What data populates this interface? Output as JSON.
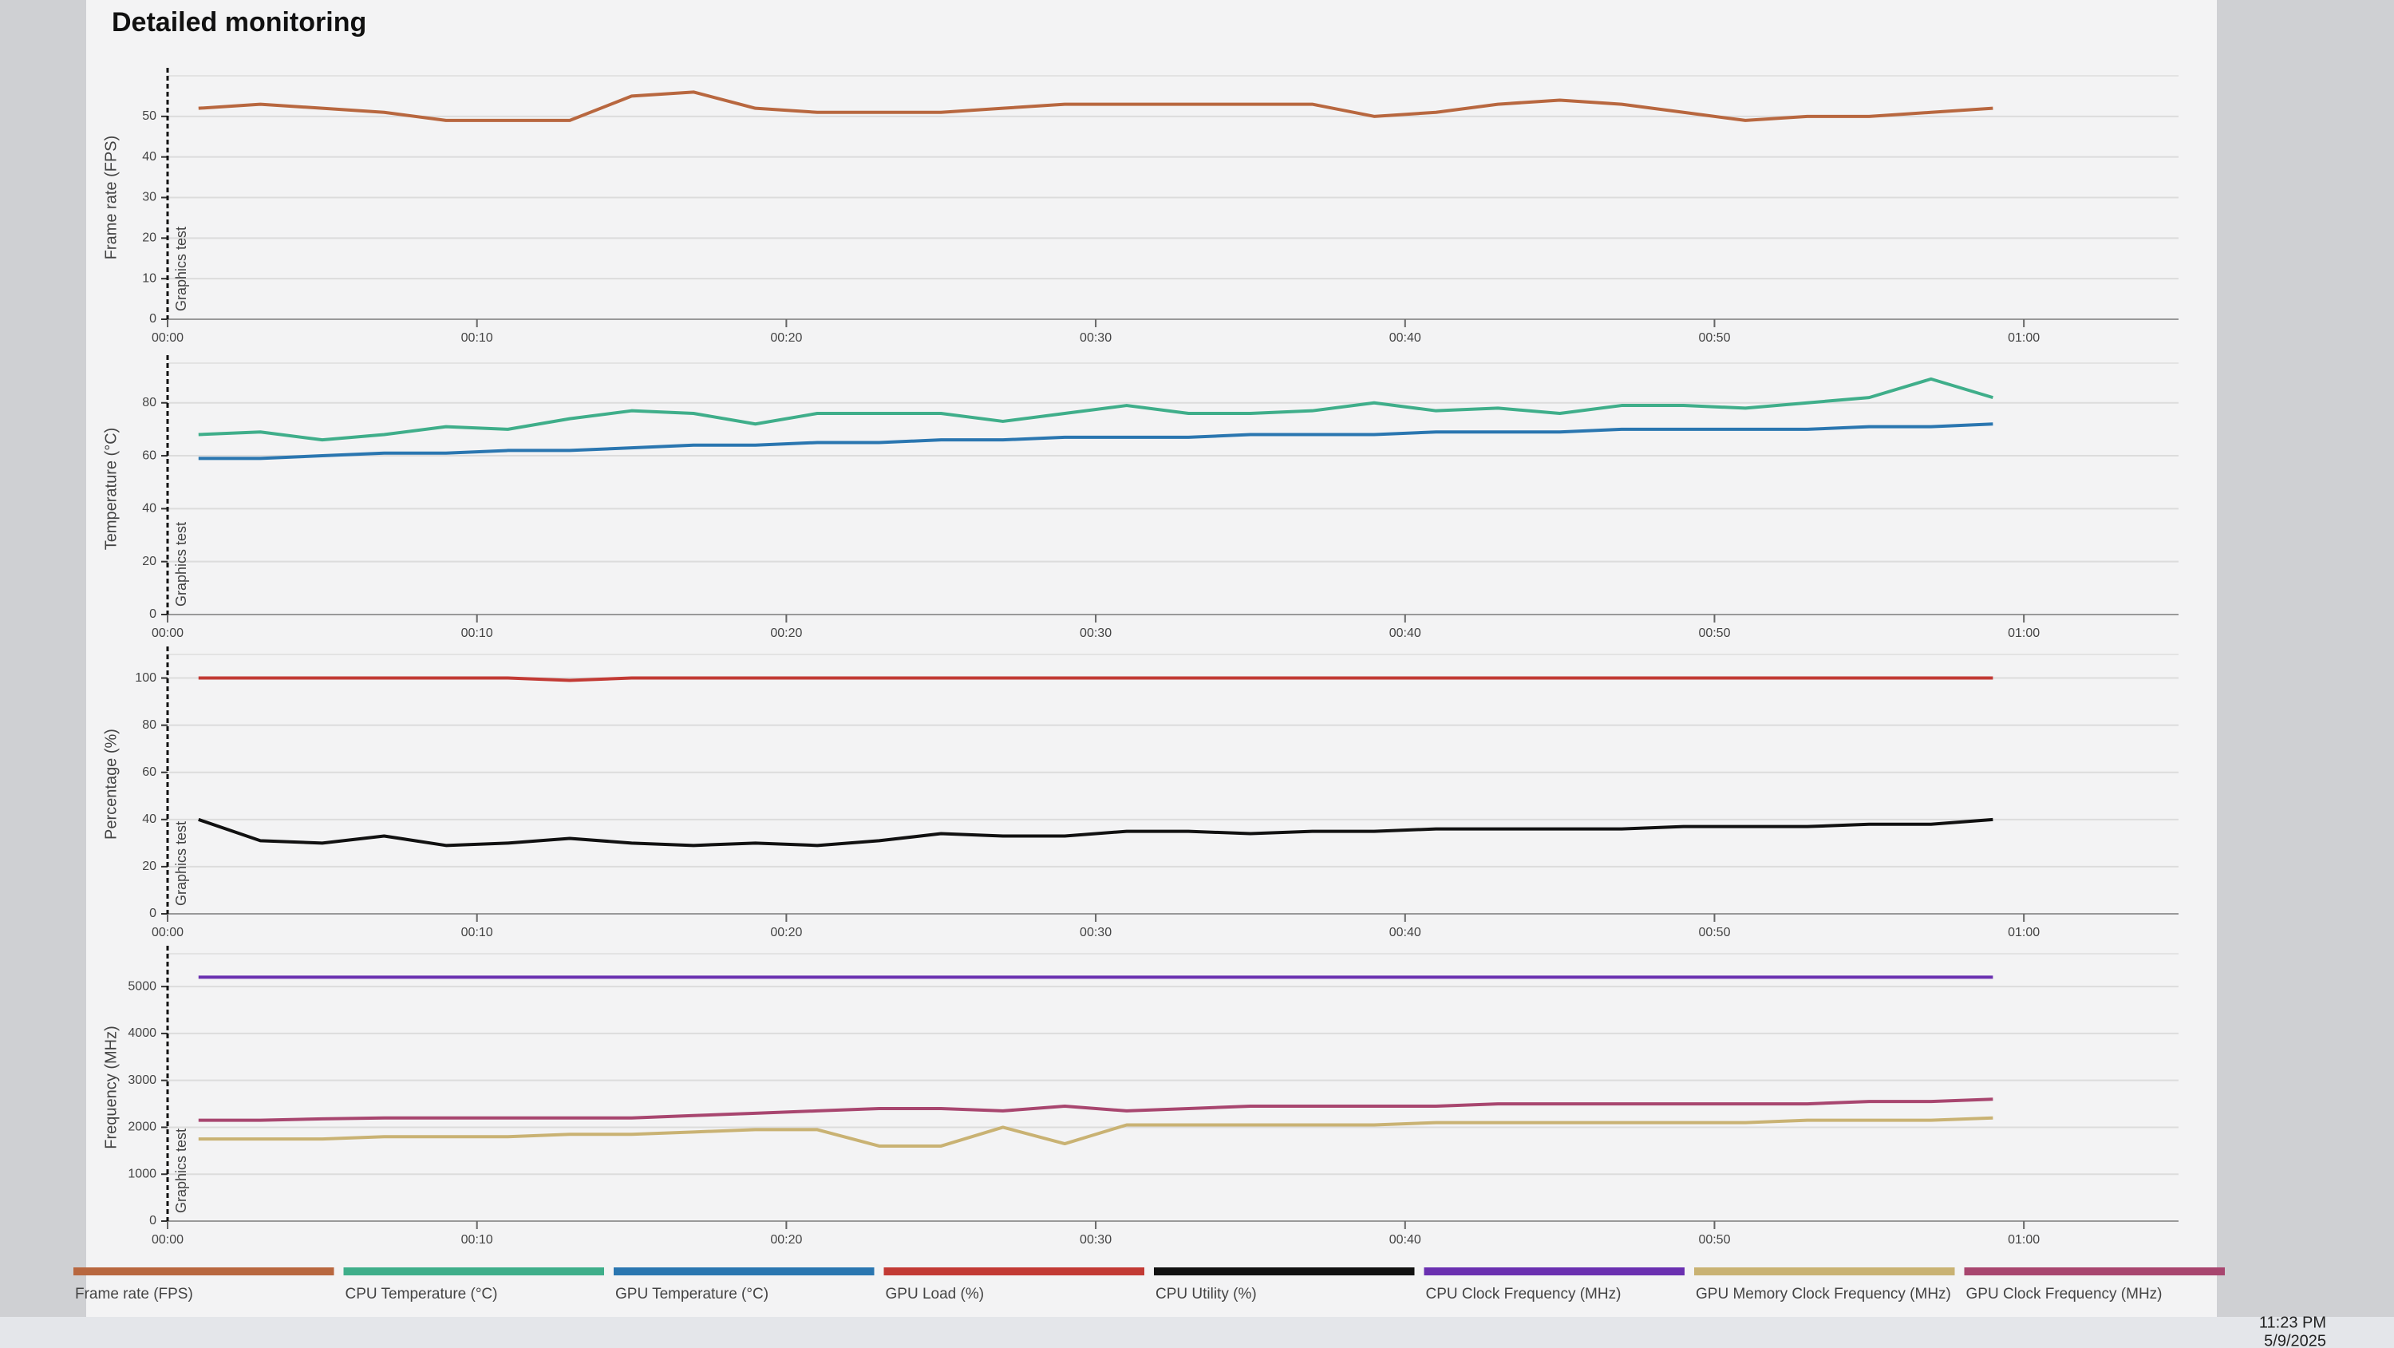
{
  "title": "Detailed monitoring",
  "chart_data": [
    {
      "type": "line",
      "ylabel": "Frame rate (FPS)",
      "annotation": "Graphics test",
      "x": [
        1,
        3,
        5,
        7,
        9,
        11,
        13,
        15,
        17,
        19,
        21,
        23,
        25,
        27,
        29,
        31,
        33,
        35,
        37,
        39,
        41,
        43,
        45,
        47,
        49,
        51,
        53,
        55,
        57,
        59
      ],
      "xlim": [
        0,
        65
      ],
      "xticks": [
        {
          "value": 0,
          "label": "00:00"
        },
        {
          "value": 10,
          "label": "00:10"
        },
        {
          "value": 20,
          "label": "00:20"
        },
        {
          "value": 30,
          "label": "00:30"
        },
        {
          "value": 40,
          "label": "00:40"
        },
        {
          "value": 50,
          "label": "00:50"
        },
        {
          "value": 60,
          "label": "01:00"
        }
      ],
      "ylim": [
        0,
        60
      ],
      "yticks": [
        0,
        10,
        20,
        30,
        40,
        50
      ],
      "grid": true,
      "series": [
        {
          "name": "Frame rate (FPS)",
          "color": "#b8673f",
          "values": [
            52,
            53,
            52,
            51,
            49,
            49,
            49,
            55,
            56,
            52,
            51,
            51,
            51,
            52,
            53,
            53,
            53,
            53,
            53,
            50,
            51,
            53,
            54,
            53,
            51,
            49,
            50,
            50,
            51,
            52
          ]
        }
      ]
    },
    {
      "type": "line",
      "ylabel": "Temperature (°C)",
      "annotation": "Graphics test",
      "x": [
        1,
        3,
        5,
        7,
        9,
        11,
        13,
        15,
        17,
        19,
        21,
        23,
        25,
        27,
        29,
        31,
        33,
        35,
        37,
        39,
        41,
        43,
        45,
        47,
        49,
        51,
        53,
        55,
        57,
        59
      ],
      "xlim": [
        0,
        65
      ],
      "xticks": [
        {
          "value": 0,
          "label": "00:00"
        },
        {
          "value": 10,
          "label": "00:10"
        },
        {
          "value": 20,
          "label": "00:20"
        },
        {
          "value": 30,
          "label": "00:30"
        },
        {
          "value": 40,
          "label": "00:40"
        },
        {
          "value": 50,
          "label": "00:50"
        },
        {
          "value": 60,
          "label": "01:00"
        }
      ],
      "ylim": [
        0,
        95
      ],
      "yticks": [
        0,
        20,
        40,
        60,
        80
      ],
      "grid": true,
      "series": [
        {
          "name": "CPU Temperature (°C)",
          "color": "#3fae8a",
          "values": [
            68,
            69,
            66,
            68,
            71,
            70,
            74,
            77,
            76,
            72,
            76,
            76,
            76,
            73,
            76,
            79,
            76,
            76,
            77,
            80,
            77,
            78,
            76,
            79,
            79,
            78,
            80,
            82,
            89,
            82
          ]
        },
        {
          "name": "GPU Temperature (°C)",
          "color": "#2a76b0",
          "values": [
            59,
            59,
            60,
            61,
            61,
            62,
            62,
            63,
            64,
            64,
            65,
            65,
            66,
            66,
            67,
            67,
            67,
            68,
            68,
            68,
            69,
            69,
            69,
            70,
            70,
            70,
            70,
            71,
            71,
            72
          ]
        }
      ]
    },
    {
      "type": "line",
      "ylabel": "Percentage (%)",
      "annotation": "Graphics test",
      "x": [
        1,
        3,
        5,
        7,
        9,
        11,
        13,
        15,
        17,
        19,
        21,
        23,
        25,
        27,
        29,
        31,
        33,
        35,
        37,
        39,
        41,
        43,
        45,
        47,
        49,
        51,
        53,
        55,
        57,
        59
      ],
      "xlim": [
        0,
        65
      ],
      "xticks": [
        {
          "value": 0,
          "label": "00:00"
        },
        {
          "value": 10,
          "label": "00:10"
        },
        {
          "value": 20,
          "label": "00:20"
        },
        {
          "value": 30,
          "label": "00:30"
        },
        {
          "value": 40,
          "label": "00:40"
        },
        {
          "value": 50,
          "label": "00:50"
        },
        {
          "value": 60,
          "label": "01:00"
        }
      ],
      "ylim": [
        0,
        110
      ],
      "yticks": [
        0,
        20,
        40,
        60,
        80,
        100
      ],
      "grid": true,
      "series": [
        {
          "name": "GPU Load (%)",
          "color": "#c23a34",
          "values": [
            100,
            100,
            100,
            100,
            100,
            100,
            99,
            100,
            100,
            100,
            100,
            100,
            100,
            100,
            100,
            100,
            100,
            100,
            100,
            100,
            100,
            100,
            100,
            100,
            100,
            100,
            100,
            100,
            100,
            100
          ]
        },
        {
          "name": "CPU Utility (%)",
          "color": "#111111",
          "values": [
            40,
            31,
            30,
            33,
            29,
            30,
            32,
            30,
            29,
            30,
            29,
            31,
            34,
            33,
            33,
            35,
            35,
            34,
            35,
            35,
            36,
            36,
            36,
            36,
            37,
            37,
            37,
            38,
            38,
            40
          ]
        }
      ]
    },
    {
      "type": "line",
      "ylabel": "Frequency (MHz)",
      "annotation": "Graphics test",
      "x": [
        1,
        3,
        5,
        7,
        9,
        11,
        13,
        15,
        17,
        19,
        21,
        23,
        25,
        27,
        29,
        31,
        33,
        35,
        37,
        39,
        41,
        43,
        45,
        47,
        49,
        51,
        53,
        55,
        57,
        59
      ],
      "xlim": [
        0,
        65
      ],
      "xticks": [
        {
          "value": 0,
          "label": "00:00"
        },
        {
          "value": 10,
          "label": "00:10"
        },
        {
          "value": 20,
          "label": "00:20"
        },
        {
          "value": 30,
          "label": "00:30"
        },
        {
          "value": 40,
          "label": "00:40"
        },
        {
          "value": 50,
          "label": "00:50"
        },
        {
          "value": 60,
          "label": "01:00"
        }
      ],
      "ylim": [
        0,
        5700
      ],
      "yticks": [
        0,
        1000,
        2000,
        3000,
        4000,
        5000
      ],
      "grid": true,
      "series": [
        {
          "name": "CPU Clock Frequency (MHz)",
          "color": "#6a30b0",
          "values": [
            5200,
            5200,
            5200,
            5200,
            5200,
            5200,
            5200,
            5200,
            5200,
            5200,
            5200,
            5200,
            5200,
            5200,
            5200,
            5200,
            5200,
            5200,
            5200,
            5200,
            5200,
            5200,
            5200,
            5200,
            5200,
            5200,
            5200,
            5200,
            5200,
            5200
          ]
        },
        {
          "name": "GPU Memory Clock Frequency (MHz)",
          "color": "#c9b273",
          "values": [
            1750,
            1750,
            1750,
            1800,
            1800,
            1800,
            1850,
            1850,
            1900,
            1950,
            1950,
            1600,
            1600,
            2000,
            1650,
            2050,
            2050,
            2050,
            2050,
            2050,
            2100,
            2100,
            2100,
            2100,
            2100,
            2100,
            2150,
            2150,
            2150,
            2200
          ]
        },
        {
          "name": "GPU Clock Frequency (MHz)",
          "color": "#a8466f",
          "values": [
            2150,
            2150,
            2180,
            2200,
            2200,
            2200,
            2200,
            2200,
            2250,
            2300,
            2350,
            2400,
            2400,
            2350,
            2450,
            2350,
            2400,
            2450,
            2450,
            2450,
            2450,
            2500,
            2500,
            2500,
            2500,
            2500,
            2500,
            2550,
            2550,
            2600
          ]
        }
      ]
    }
  ],
  "taskbar": {
    "time": "11:23 PM",
    "date": "5/9/2025"
  }
}
